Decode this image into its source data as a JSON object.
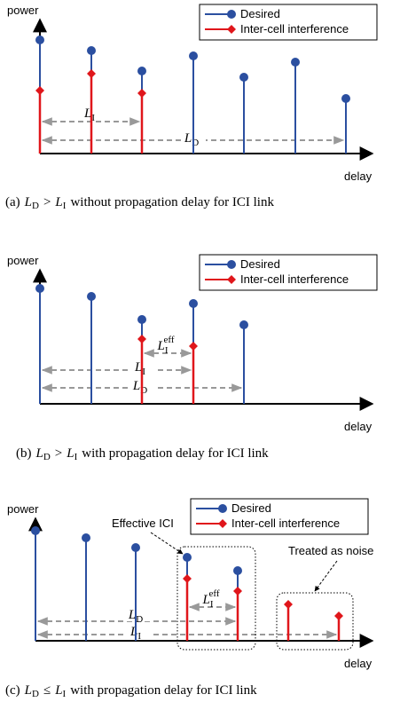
{
  "panels": [
    {
      "y_label": "power",
      "x_label": "delay",
      "legend": [
        "Desired",
        "Inter-cell interference"
      ],
      "labels": [
        {
          "main": "L",
          "sub": "I"
        },
        {
          "main": "L",
          "sub": "D"
        }
      ],
      "caption": {
        "tag": "(a)",
        "left": {
          "main": "L",
          "sub": "D"
        },
        "relation": ">",
        "right": {
          "main": "L",
          "sub": "I"
        },
        "text": "without propagation delay for ICI link"
      }
    },
    {
      "y_label": "power",
      "x_label": "delay",
      "legend": [
        "Desired",
        "Inter-cell interference"
      ],
      "labels": [
        {
          "main": "L",
          "sub": "I",
          "sup": "eff"
        },
        {
          "main": "L",
          "sub": "I"
        },
        {
          "main": "L",
          "sub": "D"
        }
      ],
      "caption": {
        "tag": "(b)",
        "left": {
          "main": "L",
          "sub": "D"
        },
        "relation": ">",
        "right": {
          "main": "L",
          "sub": "I"
        },
        "text": "with propagation delay for ICI link"
      }
    },
    {
      "y_label": "power",
      "x_label": "delay",
      "legend": [
        "Desired",
        "Inter-cell interference"
      ],
      "labels": [
        {
          "main": "L",
          "sub": "I",
          "sup": "eff"
        },
        {
          "main": "L",
          "sub": "D"
        },
        {
          "main": "L",
          "sub": "I"
        }
      ],
      "annotations": [
        "Effective ICI",
        "Treated as noise"
      ],
      "caption": {
        "tag": "(c)",
        "left": {
          "main": "L",
          "sub": "D"
        },
        "relation": "≤",
        "right": {
          "main": "L",
          "sub": "I"
        },
        "text": "with propagation delay for ICI link"
      }
    }
  ]
}
